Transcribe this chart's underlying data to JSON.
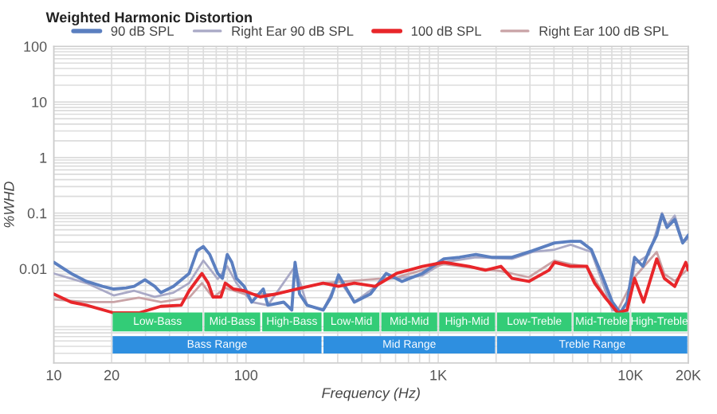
{
  "chart_data": {
    "type": "line",
    "title": "Weighted Harmonic Distortion",
    "xlabel": "Frequency (Hz)",
    "ylabel": "%WHD",
    "log": "xy",
    "grid": true,
    "legend": "top",
    "marker": "none",
    "line_style": "solid",
    "xlim": [
      10,
      20000
    ],
    "ylim": [
      0.0002,
      100
    ],
    "xticks": [
      {
        "value": 10,
        "label": "10"
      },
      {
        "value": 20,
        "label": "20"
      },
      {
        "value": 100,
        "label": "100"
      },
      {
        "value": 1000,
        "label": "1K"
      },
      {
        "value": 10000,
        "label": "10K"
      },
      {
        "value": 20000,
        "label": "20K"
      }
    ],
    "yticks": [
      0.01,
      0.1,
      1,
      10,
      100
    ],
    "series": [
      {
        "name": "90 dB SPL",
        "color": "#5b7fc0",
        "x": [
          10,
          12.3,
          14.8,
          17.9,
          20.5,
          23.8,
          26.2,
          29.8,
          33.5,
          36.1,
          41.9,
          50.6,
          55.7,
          60,
          64.8,
          71.3,
          75.4,
          79.9,
          84.4,
          89.2,
          97.8,
          107,
          123,
          130,
          157,
          173,
          180,
          190,
          208,
          252,
          277,
          303,
          366,
          444,
          536,
          648,
          827,
          1070,
          1290,
          1570,
          1890,
          2420,
          3100,
          4030,
          4890,
          5500,
          6260,
          7100,
          8050,
          8850,
          9600,
          10500,
          11600,
          12500,
          13700,
          14600,
          15500,
          17000,
          18700,
          20000
        ],
        "values": [
          0.013,
          0.0082,
          0.0059,
          0.0048,
          0.0043,
          0.0045,
          0.0048,
          0.0063,
          0.0048,
          0.0037,
          0.0048,
          0.0082,
          0.021,
          0.025,
          0.018,
          0.0082,
          0.0067,
          0.018,
          0.013,
          0.0067,
          0.0048,
          0.0025,
          0.0043,
          0.0022,
          0.0025,
          0.0018,
          0.013,
          0.0035,
          0.0022,
          0.0018,
          0.0031,
          0.0077,
          0.0025,
          0.0035,
          0.0082,
          0.0059,
          0.0082,
          0.015,
          0.016,
          0.018,
          0.016,
          0.016,
          0.021,
          0.029,
          0.031,
          0.031,
          0.022,
          0.0077,
          0.0025,
          0.0016,
          0.0025,
          0.016,
          0.011,
          0.021,
          0.04,
          0.094,
          0.055,
          0.077,
          0.029,
          0.04
        ]
      },
      {
        "name": "Right Ear 90 dB SPL",
        "color": "#a9a9c6",
        "x": [
          10,
          14.8,
          20.5,
          26.2,
          33.5,
          41.9,
          50.6,
          60,
          71.3,
          79.9,
          89.2,
          107,
          130,
          180,
          208,
          252,
          303,
          366,
          536,
          827,
          1070,
          1570,
          2420,
          3100,
          4030,
          4890,
          6260,
          7100,
          8050,
          9600,
          10500,
          12500,
          14600,
          15500,
          17000,
          18700,
          20000
        ],
        "values": [
          0.0082,
          0.0055,
          0.0033,
          0.004,
          0.0031,
          0.0037,
          0.0055,
          0.014,
          0.0065,
          0.011,
          0.0055,
          0.0025,
          0.0022,
          0.011,
          0.0022,
          0.0018,
          0.0065,
          0.0025,
          0.0065,
          0.0075,
          0.013,
          0.016,
          0.015,
          0.02,
          0.022,
          0.027,
          0.02,
          0.006,
          0.0018,
          0.0016,
          0.012,
          0.018,
          0.1,
          0.06,
          0.09,
          0.03,
          0.035
        ]
      },
      {
        "name": "100 dB SPL",
        "color": "#e8262a",
        "x": [
          10,
          12.3,
          14.8,
          20.5,
          27.7,
          36.1,
          46,
          50.6,
          59,
          63.6,
          67.3,
          74,
          78,
          86,
          97.8,
          119,
          143,
          183,
          252,
          303,
          366,
          469,
          607,
          827,
          1070,
          1450,
          1760,
          2120,
          2420,
          2960,
          3770,
          4030,
          4890,
          5930,
          6510,
          7460,
          8600,
          9600,
          10500,
          11700,
          13700,
          15000,
          17000,
          19400,
          20000
        ],
        "values": [
          0.0035,
          0.0025,
          0.0022,
          0.0016,
          0.0016,
          0.0021,
          0.0022,
          0.004,
          0.0082,
          0.0055,
          0.0031,
          0.0031,
          0.0055,
          0.0043,
          0.004,
          0.0031,
          0.0035,
          0.0043,
          0.0055,
          0.0048,
          0.0055,
          0.0048,
          0.0082,
          0.011,
          0.013,
          0.011,
          0.0094,
          0.011,
          0.0067,
          0.0059,
          0.0094,
          0.013,
          0.011,
          0.011,
          0.0055,
          0.0029,
          0.0016,
          0.0018,
          0.0067,
          0.0025,
          0.015,
          0.0067,
          0.0048,
          0.013,
          0.0094
        ]
      },
      {
        "name": "Right Ear 100 dB SPL",
        "color": "#c9a3a6",
        "x": [
          10,
          14.8,
          20.5,
          27.7,
          36.1,
          50.6,
          59,
          67.3,
          78,
          97.8,
          143,
          252,
          607,
          1070,
          2120,
          2960,
          4030,
          4890,
          5930,
          7460,
          8600,
          10500,
          13700,
          15000,
          17000,
          20000
        ],
        "values": [
          0.0028,
          0.0025,
          0.0025,
          0.003,
          0.0025,
          0.003,
          0.0055,
          0.003,
          0.0045,
          0.0035,
          0.0035,
          0.0055,
          0.007,
          0.012,
          0.009,
          0.007,
          0.014,
          0.012,
          0.011,
          0.003,
          0.0018,
          0.007,
          0.02,
          0.008,
          0.006,
          0.01
        ]
      }
    ],
    "bands": [
      {
        "axis": "x",
        "from": 20,
        "to": 60,
        "label": "Low-Bass",
        "color": "#33cc77"
      },
      {
        "axis": "x",
        "from": 60,
        "to": 120,
        "label": "Mid-Bass",
        "color": "#33cc77"
      },
      {
        "axis": "x",
        "from": 120,
        "to": 250,
        "label": "High-Bass",
        "color": "#33cc77"
      },
      {
        "axis": "x",
        "from": 250,
        "to": 500,
        "label": "Low-Mid",
        "color": "#33cc77"
      },
      {
        "axis": "x",
        "from": 500,
        "to": 1000,
        "label": "Mid-Mid",
        "color": "#33cc77"
      },
      {
        "axis": "x",
        "from": 1000,
        "to": 2000,
        "label": "High-Mid",
        "color": "#33cc77"
      },
      {
        "axis": "x",
        "from": 2000,
        "to": 5000,
        "label": "Low-Treble",
        "color": "#33cc77"
      },
      {
        "axis": "x",
        "from": 5000,
        "to": 10000,
        "label": "Mid-Treble",
        "color": "#33cc77"
      },
      {
        "axis": "x",
        "from": 10000,
        "to": 20000,
        "label": "High-Treble",
        "color": "#33cc77"
      },
      {
        "axis": "x",
        "from": 20,
        "to": 250,
        "label": "Bass Range",
        "color": "#2e8fe0"
      },
      {
        "axis": "x",
        "from": 250,
        "to": 2000,
        "label": "Mid Range",
        "color": "#2e8fe0"
      },
      {
        "axis": "x",
        "from": 2000,
        "to": 20000,
        "label": "Treble Range",
        "color": "#2e8fe0"
      }
    ]
  }
}
